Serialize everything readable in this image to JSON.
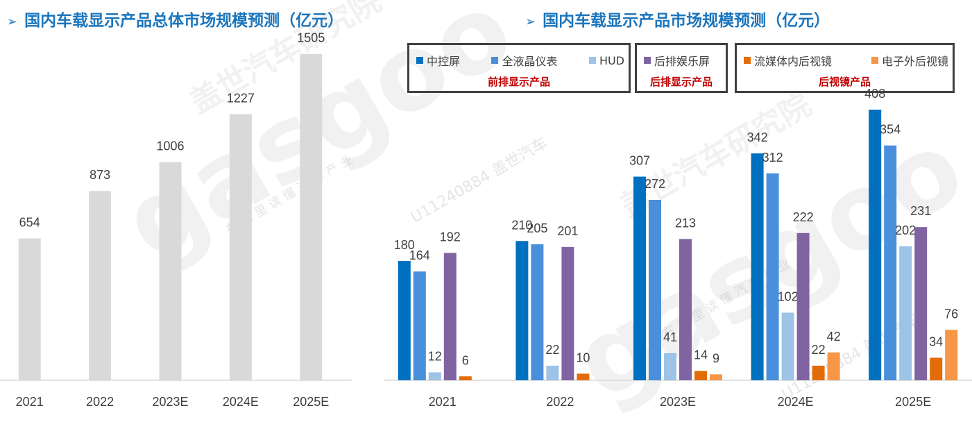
{
  "titles": {
    "left": "国内车载显示产品总体市场规模预测（亿元）",
    "right": "国内车载显示产品市场规模预测（亿元）",
    "arrow": "➢"
  },
  "legend_groups": [
    {
      "label": "前排显示产品",
      "color": "#1b75bc",
      "items": [
        {
          "name": "中控屏",
          "color": "#0070c0"
        },
        {
          "name": "全液晶仪表",
          "color": "#4a8fdb"
        },
        {
          "name": "HUD",
          "color": "#9dc3e6"
        }
      ]
    },
    {
      "label": "后排显示产品",
      "color": "#7a5a9e",
      "items": [
        {
          "name": "后排娱乐屏",
          "color": "#8064a2"
        }
      ]
    },
    {
      "label": "后视镜产品",
      "color": "#e46c0a",
      "items": [
        {
          "name": "流媒体内后视镜",
          "color": "#e36c09"
        },
        {
          "name": "电子外后视镜",
          "color": "#f79646"
        }
      ]
    }
  ],
  "chart_data": [
    {
      "type": "bar",
      "title": "国内车载显示产品总体市场规模预测（亿元）",
      "categories": [
        "2021",
        "2022",
        "2023E",
        "2024E",
        "2025E"
      ],
      "values": [
        654,
        873,
        1006,
        1227,
        1505
      ],
      "color": "#d9d9d9",
      "ylim": [
        0,
        1600
      ],
      "grid": false
    },
    {
      "type": "bar",
      "title": "国内车载显示产品市场规模预测（亿元）",
      "categories": [
        "2021",
        "2022",
        "2023E",
        "2024E",
        "2025E"
      ],
      "series": [
        {
          "name": "中控屏",
          "color": "#0070c0",
          "values": [
            180,
            210,
            307,
            342,
            408
          ]
        },
        {
          "name": "全液晶仪表",
          "color": "#4a8fdb",
          "values": [
            164,
            205,
            272,
            312,
            354
          ]
        },
        {
          "name": "HUD",
          "color": "#9dc3e6",
          "values": [
            12,
            22,
            41,
            102,
            202
          ]
        },
        {
          "name": "后排娱乐屏",
          "color": "#8064a2",
          "values": [
            192,
            201,
            213,
            222,
            231
          ]
        },
        {
          "name": "流媒体内后视镜",
          "color": "#e36c09",
          "values": [
            6,
            10,
            14,
            22,
            34
          ]
        },
        {
          "name": "电子外后视镜",
          "color": "#f79646",
          "values": [
            null,
            null,
            9,
            42,
            76
          ]
        }
      ],
      "ylim": [
        0,
        430
      ],
      "grid": false,
      "legend": "top"
    }
  ],
  "watermarks": [
    "盖世汽车研究院",
    "gasgoo",
    "U11240884 盖世汽车",
    "在 这 里 读 懂 汽 车 产 业"
  ]
}
